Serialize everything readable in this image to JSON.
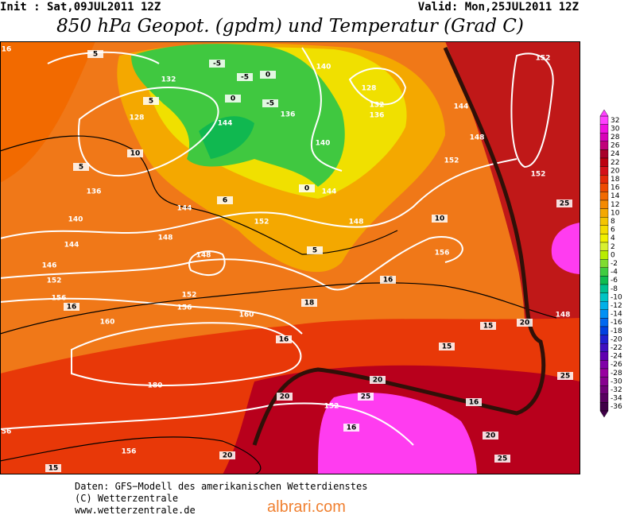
{
  "header": {
    "init": "Init : Sat,09JUL2011 12Z",
    "valid": "Valid: Mon,25JUL2011 12Z",
    "title": "850 hPa Geopot. (gpdm) und Temperatur (Grad C)"
  },
  "legend": {
    "labels": [
      32,
      30,
      28,
      26,
      24,
      22,
      20,
      18,
      16,
      14,
      12,
      10,
      8,
      6,
      4,
      2,
      0,
      -2,
      -4,
      -6,
      -8,
      -10,
      -12,
      -14,
      -16,
      -18,
      -20,
      -22,
      -24,
      -26,
      -28,
      -30,
      -32,
      -34,
      -36
    ],
    "colors": [
      "#ff40ff",
      "#f010e0",
      "#d800b8",
      "#c0007a",
      "#a8002a",
      "#bc0010",
      "#d41018",
      "#e42a08",
      "#ee4a00",
      "#f26a00",
      "#f48a00",
      "#f4a800",
      "#f4c400",
      "#f4dc00",
      "#f0f000",
      "#d8f030",
      "#b8ec00",
      "#80dc30",
      "#40cc40",
      "#10bc50",
      "#00c090",
      "#00c4c4",
      "#00b0e8",
      "#0090f4",
      "#0068f0",
      "#0040e0",
      "#2020d0",
      "#4010c0",
      "#6000b0",
      "#8000a8",
      "#9800a0",
      "#880090",
      "#700078",
      "#580060",
      "#400048"
    ]
  },
  "map": {
    "contour_labels": [
      "16",
      "5",
      "132",
      "-5",
      "-5",
      "0",
      "140",
      "128",
      "152",
      "5",
      "-5",
      "136",
      "132",
      "136",
      "144",
      "128",
      "144",
      "0",
      "148",
      "140",
      "10",
      "5",
      "152",
      "152",
      "136",
      "0",
      "144",
      "6",
      "144",
      "25",
      "140",
      "152",
      "148",
      "10",
      "148",
      "144",
      "5",
      "156",
      "148",
      "146",
      "152",
      "16",
      "152",
      "156",
      "16",
      "18",
      "156",
      "160",
      "148",
      "160",
      "15",
      "20",
      "16",
      "15",
      "20",
      "180",
      "25",
      "20",
      "25",
      "152",
      "16",
      "56",
      "16",
      "156",
      "20",
      "20",
      "25",
      "15"
    ]
  },
  "footer": {
    "lines": [
      "Daten: GFS−Modell des amerikanischen Wetterdienstes",
      "(C) Wetterzentrale",
      "www.wetterzentrale.de"
    ],
    "watermark": "albrari.com"
  }
}
